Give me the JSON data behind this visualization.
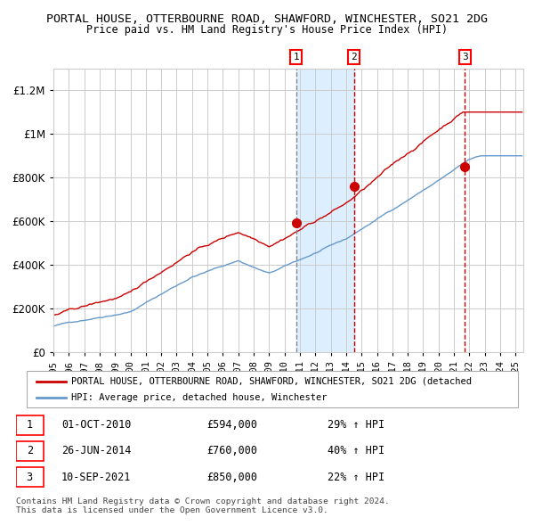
{
  "title1": "PORTAL HOUSE, OTTERBOURNE ROAD, SHAWFORD, WINCHESTER, SO21 2DG",
  "title2": "Price paid vs. HM Land Registry's House Price Index (HPI)",
  "ylabel_ticks": [
    "£0",
    "£200K",
    "£400K",
    "£600K",
    "£800K",
    "£1M",
    "£1.2M"
  ],
  "ytick_values": [
    0,
    200000,
    400000,
    600000,
    800000,
    1000000,
    1200000
  ],
  "ylim": [
    0,
    1300000
  ],
  "xlim_start": 1995.0,
  "xlim_end": 2025.5,
  "hpi_color": "#6699cc",
  "price_color": "#cc0000",
  "sale_marker_color": "#cc0000",
  "grid_color": "#cccccc",
  "bg_color": "#ffffff",
  "shade_color": "#ddeeff",
  "vline1_color": "#888888",
  "vline2_color": "#cc0000",
  "vline3_color": "#cc0000",
  "sale1_date_x": 2010.75,
  "sale1_y": 594000,
  "sale2_date_x": 2014.5,
  "sale2_y": 760000,
  "sale3_date_x": 2021.7,
  "sale3_y": 850000,
  "shade_x1": 2010.75,
  "shade_x2": 2014.5,
  "legend_text1": "PORTAL HOUSE, OTTERBOURNE ROAD, SHAWFORD, WINCHESTER, SO21 2DG (detached",
  "legend_text2": "HPI: Average price, detached house, Winchester",
  "table_rows": [
    [
      "1",
      "01-OCT-2010",
      "£594,000",
      "29% ↑ HPI"
    ],
    [
      "2",
      "26-JUN-2014",
      "£760,000",
      "40% ↑ HPI"
    ],
    [
      "3",
      "10-SEP-2021",
      "£850,000",
      "22% ↑ HPI"
    ]
  ],
  "footer_text": "Contains HM Land Registry data © Crown copyright and database right 2024.\nThis data is licensed under the Open Government Licence v3.0.",
  "title_fontsize": 9.5,
  "tick_fontsize": 8.5,
  "label_fontsize": 8
}
